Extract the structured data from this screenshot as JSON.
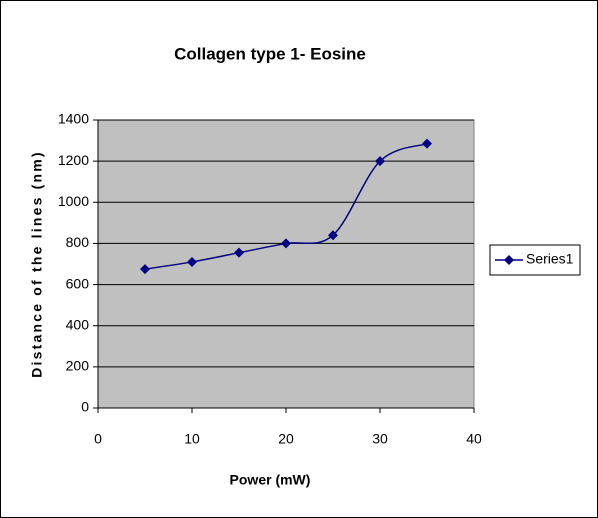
{
  "chart_data": {
    "type": "line",
    "title": "Collagen type 1- Eosine",
    "x_label": "Power (mW)",
    "y_label": "Distance of the lines (nm)",
    "x": [
      5,
      10,
      15,
      20,
      25,
      30,
      35
    ],
    "series": [
      {
        "name": "Series1",
        "color": "#000080",
        "values": [
          675,
          710,
          755,
          800,
          840,
          1200,
          1285
        ]
      }
    ],
    "xlim": [
      0,
      40
    ],
    "xticks": [
      0,
      10,
      20,
      30,
      40
    ],
    "ylim": [
      0,
      1400
    ],
    "yticks": [
      0,
      200,
      400,
      600,
      800,
      1000,
      1200,
      1400
    ],
    "grid": true,
    "legend": "right",
    "plot_background": "#c0c0c0",
    "smooth": true
  }
}
